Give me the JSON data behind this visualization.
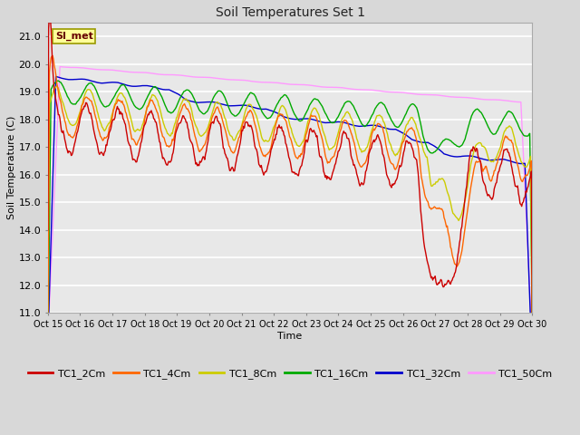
{
  "title": "Soil Temperatures Set 1",
  "xlabel": "Time",
  "ylabel": "Soil Temperature (C)",
  "ylim": [
    11.0,
    21.5
  ],
  "yticks": [
    11.0,
    12.0,
    13.0,
    14.0,
    15.0,
    16.0,
    17.0,
    18.0,
    19.0,
    20.0,
    21.0
  ],
  "xtick_labels": [
    "Oct 15",
    "Oct 16",
    "Oct 17",
    "Oct 18",
    "Oct 19",
    "Oct 20",
    "Oct 21",
    "Oct 22",
    "Oct 23",
    "Oct 24",
    "Oct 25",
    "Oct 26",
    "Oct 27",
    "Oct 28",
    "Oct 29",
    "Oct 30"
  ],
  "series_colors": {
    "TC1_2Cm": "#cc0000",
    "TC1_4Cm": "#ff6600",
    "TC1_8Cm": "#cccc00",
    "TC1_16Cm": "#00aa00",
    "TC1_32Cm": "#0000cc",
    "TC1_50Cm": "#ff99ff"
  },
  "legend_label": "SI_met",
  "bg_color": "#e8e8e8",
  "grid_color": "#ffffff",
  "fig_bg": "#d8d8d8",
  "annotation_box_color": "#ffff99",
  "annotation_box_edge": "#999900"
}
